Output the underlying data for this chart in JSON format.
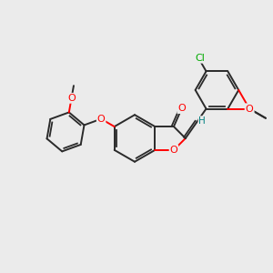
{
  "background_color": "#ebebeb",
  "bond_color": "#2a2a2a",
  "atom_colors": {
    "O": "#ff0000",
    "Cl": "#00aa00",
    "H": "#008080",
    "C": "#2a2a2a"
  },
  "figsize": [
    3.0,
    3.0
  ],
  "dpi": 100
}
